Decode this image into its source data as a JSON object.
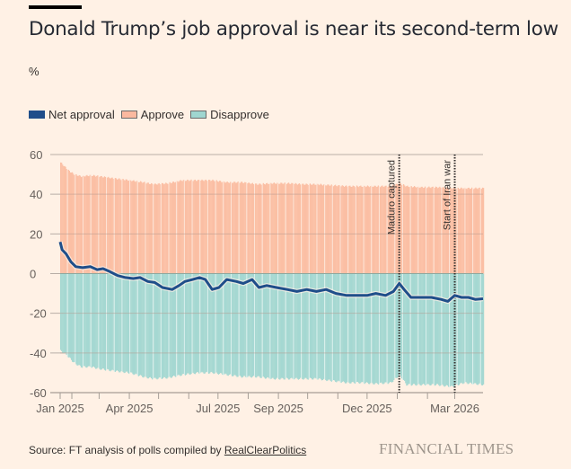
{
  "header": {
    "title": "Donald Trump’s job approval is near its second-term low",
    "unit": "%"
  },
  "legend": [
    {
      "label": "Net approval",
      "color": "#1f4e8a",
      "key": "net"
    },
    {
      "label": "Approve",
      "color": "#fbb99f",
      "key": "approve"
    },
    {
      "label": "Disapprove",
      "color": "#9fd6d0",
      "key": "disapprove"
    }
  ],
  "footer": {
    "source_prefix": "Source: FT analysis of polls compiled by ",
    "source_link": "RealClearPolitics",
    "brand": "FINANCIAL TIMES"
  },
  "chart_data": {
    "type": "area",
    "title": "Donald Trump’s job approval is near its second-term low",
    "ylabel": "%",
    "xlabel": "",
    "ylim": [
      -60,
      60
    ],
    "yticks": [
      60,
      40,
      20,
      0,
      -20,
      -40,
      -60
    ],
    "xrange": [
      "2025-01-20",
      "2026-03-30"
    ],
    "xticks": [
      {
        "date": "2025-01-20",
        "label": "Jan 2025"
      },
      {
        "date": "2025-02-01",
        "label": ""
      },
      {
        "date": "2025-03-01",
        "label": ""
      },
      {
        "date": "2025-04-01",
        "label": "Apr 2025"
      },
      {
        "date": "2025-05-01",
        "label": ""
      },
      {
        "date": "2025-06-01",
        "label": ""
      },
      {
        "date": "2025-07-01",
        "label": "Jul 2025"
      },
      {
        "date": "2025-08-01",
        "label": ""
      },
      {
        "date": "2025-09-01",
        "label": "Sep 2025"
      },
      {
        "date": "2025-10-01",
        "label": ""
      },
      {
        "date": "2025-11-01",
        "label": ""
      },
      {
        "date": "2025-12-01",
        "label": "Dec 2025"
      },
      {
        "date": "2026-01-01",
        "label": ""
      },
      {
        "date": "2026-02-01",
        "label": ""
      },
      {
        "date": "2026-03-01",
        "label": "Mar 2026"
      }
    ],
    "annotations": [
      {
        "date": "2026-01-03",
        "label": "Maduro captured"
      },
      {
        "date": "2026-03-01",
        "label": "Start of Iran war"
      }
    ],
    "grid": true,
    "legend_position": "top-left",
    "series": [
      {
        "name": "Approve",
        "dates": [
          "2025-01-20",
          "2025-01-24",
          "2025-01-28",
          "2025-02-03",
          "2025-02-10",
          "2025-02-20",
          "2025-03-01",
          "2025-03-15",
          "2025-04-01",
          "2025-04-15",
          "2025-04-25",
          "2025-05-10",
          "2025-05-25",
          "2025-06-10",
          "2025-06-25",
          "2025-07-10",
          "2025-07-25",
          "2025-08-10",
          "2025-08-25",
          "2025-09-10",
          "2025-09-25",
          "2025-10-10",
          "2025-10-25",
          "2025-11-10",
          "2025-11-25",
          "2025-12-10",
          "2025-12-25",
          "2026-01-03",
          "2026-01-10",
          "2026-01-25",
          "2026-02-10",
          "2026-02-25",
          "2026-03-10",
          "2026-03-30"
        ],
        "values": [
          56,
          54,
          52,
          50,
          49,
          49.5,
          49,
          48,
          47,
          46,
          45,
          45.5,
          47,
          47,
          47,
          46,
          46,
          45,
          45.5,
          45.5,
          45,
          45,
          44.5,
          44,
          44,
          44,
          44,
          45.5,
          44,
          43.5,
          43.5,
          43,
          43,
          43
        ]
      },
      {
        "name": "Disapprove",
        "dates": [
          "2025-01-20",
          "2025-01-24",
          "2025-01-28",
          "2025-02-03",
          "2025-02-10",
          "2025-02-20",
          "2025-03-01",
          "2025-03-15",
          "2025-04-01",
          "2025-04-15",
          "2025-04-25",
          "2025-05-10",
          "2025-05-25",
          "2025-06-10",
          "2025-06-25",
          "2025-07-10",
          "2025-07-25",
          "2025-08-10",
          "2025-08-25",
          "2025-09-10",
          "2025-09-25",
          "2025-10-10",
          "2025-10-25",
          "2025-11-10",
          "2025-11-25",
          "2025-12-10",
          "2025-12-25",
          "2026-01-03",
          "2026-01-10",
          "2026-01-25",
          "2026-02-10",
          "2026-02-25",
          "2026-03-10",
          "2026-03-30"
        ],
        "values": [
          -39,
          -40,
          -42,
          -45,
          -47,
          -47,
          -48,
          -49,
          -50,
          -52,
          -53,
          -52.5,
          -51,
          -50,
          -50,
          -51,
          -52,
          -52,
          -53,
          -53,
          -53,
          -53,
          -54,
          -55,
          -55,
          -55.5,
          -55,
          -51,
          -56,
          -56,
          -56,
          -57,
          -55,
          -56
        ]
      },
      {
        "name": "Net approval",
        "dates": [
          "2025-01-20",
          "2025-01-22",
          "2025-01-26",
          "2025-01-31",
          "2025-02-05",
          "2025-02-12",
          "2025-02-20",
          "2025-02-27",
          "2025-03-05",
          "2025-03-12",
          "2025-03-20",
          "2025-03-28",
          "2025-04-05",
          "2025-04-12",
          "2025-04-20",
          "2025-04-27",
          "2025-05-05",
          "2025-05-15",
          "2025-05-22",
          "2025-05-28",
          "2025-06-05",
          "2025-06-12",
          "2025-06-18",
          "2025-06-25",
          "2025-07-02",
          "2025-07-10",
          "2025-07-20",
          "2025-07-27",
          "2025-08-05",
          "2025-08-12",
          "2025-08-20",
          "2025-08-30",
          "2025-09-10",
          "2025-09-20",
          "2025-09-30",
          "2025-10-10",
          "2025-10-20",
          "2025-10-30",
          "2025-11-10",
          "2025-11-20",
          "2025-12-01",
          "2025-12-10",
          "2025-12-20",
          "2025-12-28",
          "2026-01-03",
          "2026-01-08",
          "2026-01-15",
          "2026-01-25",
          "2026-02-05",
          "2026-02-15",
          "2026-02-22",
          "2026-03-01",
          "2026-03-08",
          "2026-03-15",
          "2026-03-22",
          "2026-03-30"
        ],
        "values": [
          16,
          12,
          10,
          6,
          3.5,
          3,
          3.5,
          2,
          2.5,
          1,
          -1,
          -2,
          -2.5,
          -2,
          -4,
          -4.5,
          -7,
          -8,
          -6,
          -4,
          -3,
          -2,
          -3,
          -8,
          -7,
          -3,
          -4,
          -5,
          -3,
          -7,
          -6,
          -7,
          -8,
          -9,
          -8,
          -9,
          -8,
          -10,
          -11,
          -11,
          -11,
          -10,
          -11,
          -9,
          -5,
          -8,
          -12,
          -12,
          -12,
          -13,
          -14,
          -11,
          -12,
          -12,
          -13,
          -12.7
        ]
      }
    ]
  }
}
